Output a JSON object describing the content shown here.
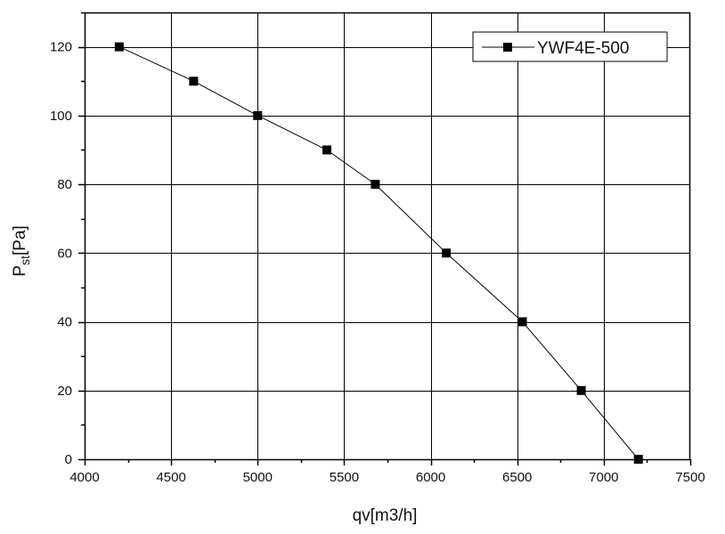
{
  "chart_data": {
    "type": "line",
    "xlabel": "qv[m3/h]",
    "ylabel_main": "P",
    "ylabel_sub": "st",
    "ylabel_rest": "[Pa]",
    "xlim": [
      4000,
      7500
    ],
    "ylim": [
      0,
      130
    ],
    "x_ticks": [
      4000,
      4500,
      5000,
      5500,
      6000,
      6500,
      7000,
      7500
    ],
    "y_ticks": [
      0,
      20,
      40,
      60,
      80,
      100,
      120
    ],
    "grid": true,
    "legend_position": "top-right",
    "series": [
      {
        "name": "YWF4E-500",
        "color": "#000000",
        "marker": "square",
        "x": [
          4200,
          4630,
          5000,
          5400,
          5680,
          6090,
          6530,
          6870,
          7200
        ],
        "y": [
          120,
          110,
          100,
          90,
          80,
          60,
          40,
          20,
          0
        ]
      }
    ]
  }
}
